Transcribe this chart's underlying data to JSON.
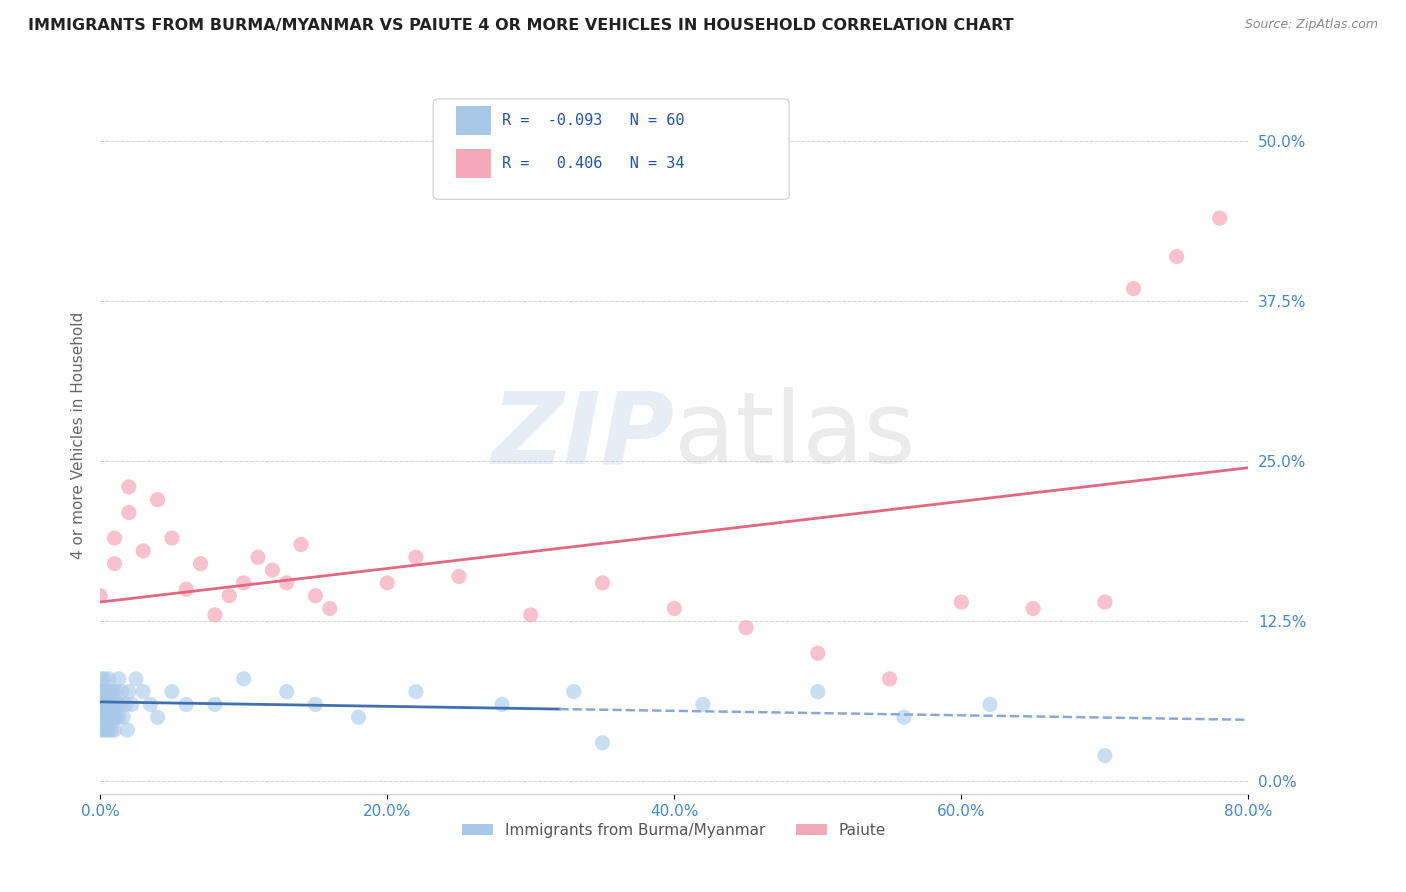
{
  "title": "IMMIGRANTS FROM BURMA/MYANMAR VS PAIUTE 4 OR MORE VEHICLES IN HOUSEHOLD CORRELATION CHART",
  "source": "Source: ZipAtlas.com",
  "xlabel": "",
  "ylabel": "4 or more Vehicles in Household",
  "legend_label1": "Immigrants from Burma/Myanmar",
  "legend_label2": "Paiute",
  "r1": -0.093,
  "n1": 60,
  "r2": 0.406,
  "n2": 34,
  "color1": "#a8c8e8",
  "color2": "#f4a8b8",
  "trendline1_solid_color": "#4070b0",
  "trendline1_dash_color": "#88aad0",
  "trendline2_color": "#e06880",
  "xlim": [
    0.0,
    0.8
  ],
  "ylim": [
    -0.01,
    0.55
  ],
  "xtick_labels": [
    "0.0%",
    "20.0%",
    "40.0%",
    "60.0%",
    "80.0%"
  ],
  "xtick_vals": [
    0.0,
    0.2,
    0.4,
    0.6,
    0.8
  ],
  "ytick_labels": [
    "0.0%",
    "12.5%",
    "25.0%",
    "37.5%",
    "50.0%"
  ],
  "ytick_vals": [
    0.0,
    0.125,
    0.25,
    0.375,
    0.5
  ],
  "background_color": "#ffffff",
  "watermark_left": "ZIP",
  "watermark_right": "atlas",
  "scatter1_x": [
    0.0,
    0.0,
    0.0,
    0.001,
    0.001,
    0.001,
    0.002,
    0.002,
    0.002,
    0.003,
    0.003,
    0.003,
    0.004,
    0.004,
    0.004,
    0.005,
    0.005,
    0.006,
    0.006,
    0.006,
    0.007,
    0.007,
    0.008,
    0.008,
    0.009,
    0.009,
    0.01,
    0.01,
    0.011,
    0.011,
    0.012,
    0.013,
    0.013,
    0.014,
    0.015,
    0.016,
    0.018,
    0.019,
    0.02,
    0.022,
    0.025,
    0.03,
    0.035,
    0.04,
    0.05,
    0.06,
    0.08,
    0.1,
    0.13,
    0.15,
    0.18,
    0.22,
    0.28,
    0.33,
    0.35,
    0.42,
    0.5,
    0.56,
    0.62,
    0.7
  ],
  "scatter1_y": [
    0.06,
    0.07,
    0.05,
    0.08,
    0.05,
    0.04,
    0.07,
    0.06,
    0.04,
    0.08,
    0.06,
    0.05,
    0.07,
    0.06,
    0.04,
    0.06,
    0.05,
    0.08,
    0.06,
    0.04,
    0.07,
    0.05,
    0.06,
    0.04,
    0.07,
    0.05,
    0.06,
    0.04,
    0.07,
    0.05,
    0.06,
    0.08,
    0.05,
    0.06,
    0.07,
    0.05,
    0.06,
    0.04,
    0.07,
    0.06,
    0.08,
    0.07,
    0.06,
    0.05,
    0.07,
    0.06,
    0.06,
    0.08,
    0.07,
    0.06,
    0.05,
    0.07,
    0.06,
    0.07,
    0.03,
    0.06,
    0.07,
    0.05,
    0.06,
    0.02
  ],
  "scatter2_x": [
    0.0,
    0.01,
    0.01,
    0.02,
    0.02,
    0.03,
    0.04,
    0.05,
    0.06,
    0.07,
    0.08,
    0.09,
    0.1,
    0.11,
    0.12,
    0.13,
    0.14,
    0.15,
    0.16,
    0.2,
    0.22,
    0.25,
    0.3,
    0.35,
    0.4,
    0.45,
    0.5,
    0.55,
    0.6,
    0.65,
    0.7,
    0.72,
    0.75,
    0.78
  ],
  "scatter2_y": [
    0.145,
    0.19,
    0.17,
    0.23,
    0.21,
    0.18,
    0.22,
    0.19,
    0.15,
    0.17,
    0.13,
    0.145,
    0.155,
    0.175,
    0.165,
    0.155,
    0.185,
    0.145,
    0.135,
    0.155,
    0.175,
    0.16,
    0.13,
    0.155,
    0.135,
    0.12,
    0.1,
    0.08,
    0.14,
    0.135,
    0.14,
    0.385,
    0.41,
    0.44
  ],
  "trendline1_solid_end": 0.32,
  "trendline1_start_y": 0.062,
  "trendline1_end_y": 0.048,
  "trendline2_start_y": 0.14,
  "trendline2_end_y": 0.245
}
